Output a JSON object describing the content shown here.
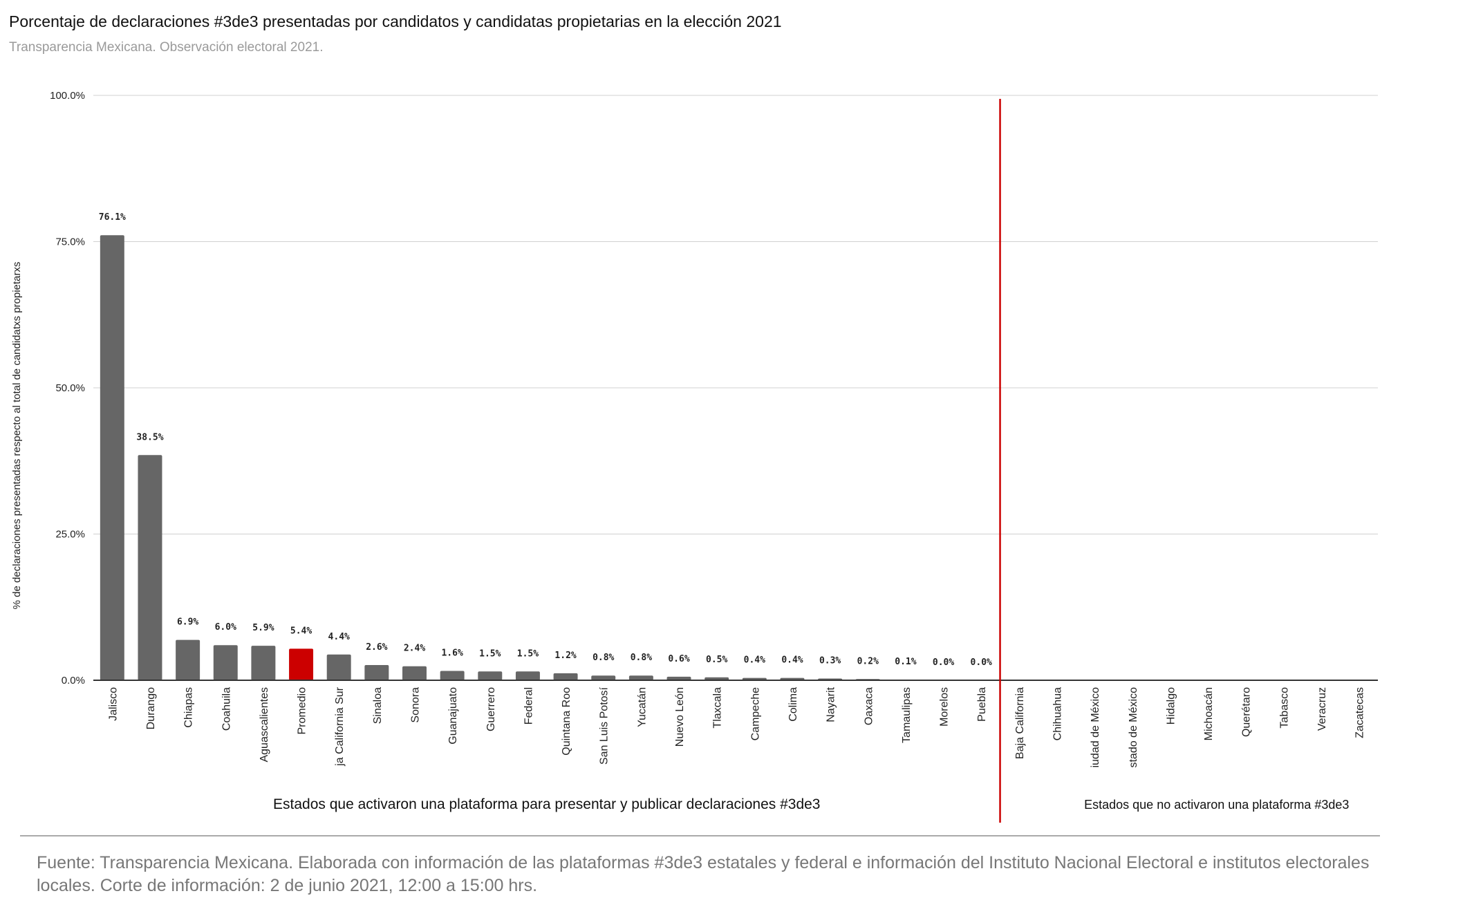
{
  "title": "Porcentaje de declaraciones #3de3 presentadas por candidatos y candidatas propietarias en la elección 2021",
  "subtitle": "Transparencia Mexicana. Observación electoral 2021.",
  "footer": "Fuente: Transparencia Mexicana. Elaborada con información de las plataformas #3de3 estatales y federal e información del Instituto Nacional Electoral e institutos electorales locales. Corte de información: 2 de junio 2021, 12:00 a 15:00 hrs.",
  "chart_data": {
    "type": "bar",
    "ylabel": "% de declaraciones presentadas respecto al total de candidatxs propietarxs",
    "ylim": [
      0,
      100
    ],
    "yticks": [
      "0.0%",
      "25.0%",
      "50.0%",
      "75.0%",
      "100.0%"
    ],
    "ytick_values": [
      0,
      25,
      50,
      75,
      100
    ],
    "grid": true,
    "categories": [
      "Jalisco",
      "Durango",
      "Chiapas",
      "Coahuila",
      "Aguascalientes",
      "Promedio",
      "ja California Sur",
      "Sinaloa",
      "Sonora",
      "Guanajuato",
      "Guerrero",
      "Federal",
      "Quintana Roo",
      "San Luis Potosí",
      "Yucatán",
      "Nuevo León",
      "Tlaxcala",
      "Campeche",
      "Colima",
      "Nayarit",
      "Oaxaca",
      "Tamaulipas",
      "Morelos",
      "Puebla",
      "Baja California",
      "Chihuahua",
      "iudad de México",
      "stado de México",
      "Hidalgo",
      "Michoacán",
      "Querétaro",
      "Tabasco",
      "Veracruz",
      "Zacatecas"
    ],
    "values": [
      76.1,
      38.5,
      6.9,
      6.0,
      5.9,
      5.4,
      4.4,
      2.6,
      2.4,
      1.6,
      1.5,
      1.5,
      1.2,
      0.8,
      0.8,
      0.6,
      0.5,
      0.4,
      0.4,
      0.3,
      0.2,
      0.1,
      0.0,
      0.0,
      null,
      null,
      null,
      null,
      null,
      null,
      null,
      null,
      null,
      null
    ],
    "data_labels": [
      "76.1%",
      "38.5%",
      "6.9%",
      "6.0%",
      "5.9%",
      "5.4%",
      "4.4%",
      "2.6%",
      "2.4%",
      "1.6%",
      "1.5%",
      "1.5%",
      "1.2%",
      "0.8%",
      "0.8%",
      "0.6%",
      "0.5%",
      "0.4%",
      "0.4%",
      "0.3%",
      "0.2%",
      "0.1%",
      "0.0%",
      "0.0%",
      "",
      "",
      "",
      "",
      "",
      "",
      "",
      "",
      "",
      ""
    ],
    "highlight_category": "Promedio",
    "colors": {
      "bar": "#666666",
      "highlight": "#cc0000",
      "divider": "#cc0000",
      "grid": "#d0d0d0",
      "axis": "#333333"
    },
    "groups": [
      {
        "label": "Estados que activaron una plataforma para presentar y publicar declaraciones #3de3",
        "first": 0,
        "last": 23
      },
      {
        "label": "Estados que no activaron una plataforma #3de3",
        "first": 24,
        "last": 33
      }
    ]
  }
}
